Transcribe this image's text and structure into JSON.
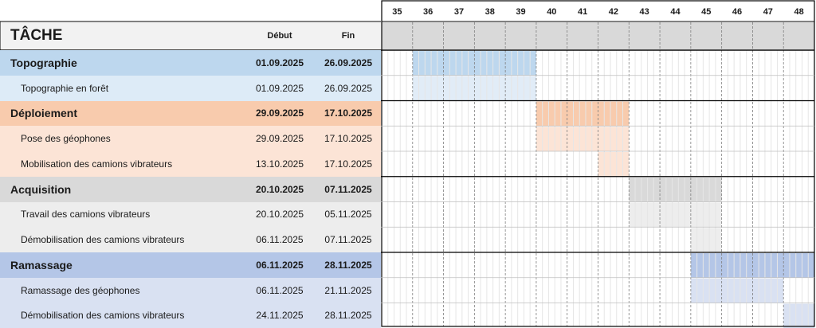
{
  "header": {
    "task_label": "TÂCHE",
    "start_label": "Début",
    "end_label": "Fin"
  },
  "rows": [
    {
      "kind": "phase",
      "group": 0,
      "name": "Topographie",
      "start": "01.09.2025",
      "end": "26.09.2025"
    },
    {
      "kind": "task",
      "group": 0,
      "name": "Topographie en forêt",
      "start": "01.09.2025",
      "end": "26.09.2025"
    },
    {
      "kind": "phase",
      "group": 1,
      "name": "Déploiement",
      "start": "29.09.2025",
      "end": "17.10.2025"
    },
    {
      "kind": "task",
      "group": 1,
      "name": "Pose des géophones",
      "start": "29.09.2025",
      "end": "17.10.2025"
    },
    {
      "kind": "task",
      "group": 1,
      "name": "Mobilisation des camions vibrateurs",
      "start": "13.10.2025",
      "end": "17.10.2025"
    },
    {
      "kind": "phase",
      "group": 2,
      "name": "Acquisition",
      "start": "20.10.2025",
      "end": "07.11.2025"
    },
    {
      "kind": "task",
      "group": 2,
      "name": "Travail des camions vibrateurs",
      "start": "20.10.2025",
      "end": "05.11.2025"
    },
    {
      "kind": "task",
      "group": 2,
      "name": "Démobilisation des camions vibrateurs",
      "start": "06.11.2025",
      "end": "07.11.2025"
    },
    {
      "kind": "phase",
      "group": 3,
      "name": "Ramassage",
      "start": "06.11.2025",
      "end": "28.11.2025"
    },
    {
      "kind": "task",
      "group": 3,
      "name": "Ramassage des géophones",
      "start": "06.11.2025",
      "end": "21.11.2025"
    },
    {
      "kind": "task",
      "group": 3,
      "name": "Démobilisation des camions vibrateurs",
      "start": "24.11.2025",
      "end": "28.11.2025"
    }
  ],
  "colors": {
    "groups": [
      {
        "phase_bg": "#bdd7ee",
        "task_bg": "#ddebf7",
        "phase_bar": "#bdd7ee",
        "task_bar": "#e1ecf7"
      },
      {
        "phase_bg": "#f8cbad",
        "task_bg": "#fce4d6",
        "phase_bar": "#f8cbad",
        "task_bar": "#fce4d6"
      },
      {
        "phase_bg": "#d9d9d9",
        "task_bg": "#ededed",
        "phase_bar": "#d9d9d9",
        "task_bar": "#ededed"
      },
      {
        "phase_bg": "#b4c6e7",
        "task_bg": "#d9e1f2",
        "phase_bar": "#b4c6e7",
        "task_bar": "#d9e1f2"
      }
    ],
    "header_band": "#d9d9d9",
    "title_band": "#f2f2f2",
    "grid_line": "#000000",
    "week_divider": "#7f7f7f"
  },
  "chart_data": {
    "type": "gantt",
    "x_axis": "week number",
    "weeks": [
      35,
      36,
      37,
      38,
      39,
      40,
      41,
      42,
      43,
      44,
      45,
      46,
      47,
      48
    ],
    "phases": [
      {
        "name": "Topographie",
        "start_week": 36,
        "end_week": 39,
        "tasks": [
          {
            "name": "Topographie en forêt",
            "start_week": 36,
            "end_week": 39
          }
        ]
      },
      {
        "name": "Déploiement",
        "start_week": 40,
        "end_week": 42,
        "tasks": [
          {
            "name": "Pose des géophones",
            "start_week": 40,
            "end_week": 42
          },
          {
            "name": "Mobilisation des camions vibrateurs",
            "start_week": 42,
            "end_week": 42
          }
        ]
      },
      {
        "name": "Acquisition",
        "start_week": 43,
        "end_week": 45,
        "tasks": [
          {
            "name": "Travail des camions vibrateurs",
            "start_week": 43,
            "end_week": 45
          },
          {
            "name": "Démobilisation des camions vibrateurs",
            "start_week": 45,
            "end_week": 45
          }
        ]
      },
      {
        "name": "Ramassage",
        "start_week": 45,
        "end_week": 48,
        "tasks": [
          {
            "name": "Ramassage des géophones",
            "start_week": 45,
            "end_week": 47
          },
          {
            "name": "Démobilisation des camions vibrateurs",
            "start_week": 48,
            "end_week": 48
          }
        ]
      }
    ]
  }
}
